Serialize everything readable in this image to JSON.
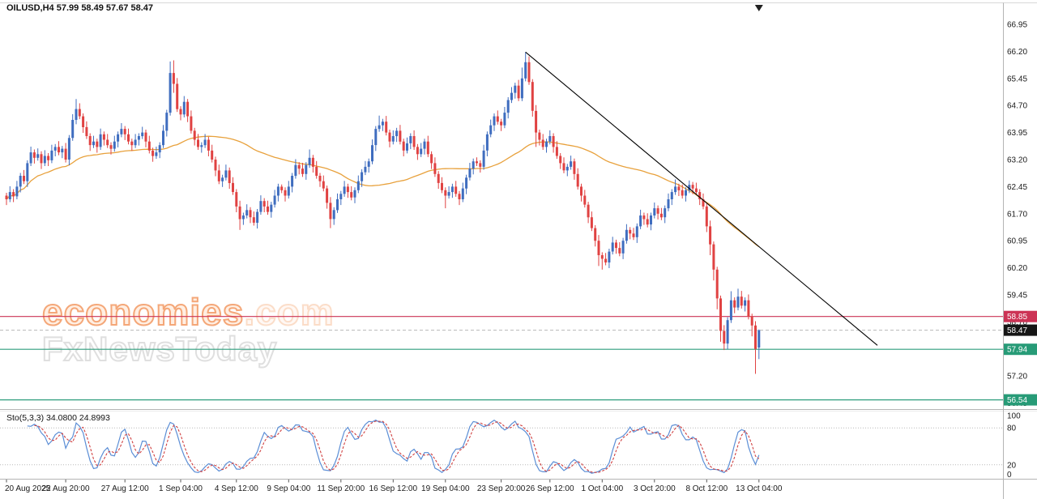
{
  "watermark": {
    "brand_main": "economies",
    "brand_suffix": ".com",
    "subbrand": "FxNewsToday"
  },
  "chart_data": {
    "type": "candlestick",
    "title": "OILUSD,H4 57.99 58.49 57.67 58.47",
    "symbol": "OILUSD",
    "timeframe": "H4",
    "last_bar_ohlc": {
      "open": 57.99,
      "high": 58.49,
      "low": 57.67,
      "close": 58.47
    },
    "price_range": [
      56.28,
      67.5
    ],
    "up_color": "#3f6dbf",
    "down_color": "#e04242",
    "ohlc": [
      [
        62.2,
        62.28,
        61.94,
        62.1
      ],
      [
        62.1,
        62.46,
        62.02,
        62.3
      ],
      [
        62.3,
        62.38,
        62.02,
        62.18
      ],
      [
        62.18,
        62.61,
        62.1,
        62.45
      ],
      [
        62.45,
        62.83,
        62.29,
        62.75
      ],
      [
        62.75,
        62.91,
        62.52,
        62.6
      ],
      [
        62.6,
        63.18,
        62.44,
        63.1
      ],
      [
        63.1,
        63.56,
        63.02,
        63.4
      ],
      [
        63.4,
        63.48,
        63.09,
        63.25
      ],
      [
        63.25,
        63.51,
        63.17,
        63.35
      ],
      [
        63.35,
        63.43,
        62.94,
        63.1
      ],
      [
        63.1,
        63.46,
        63.02,
        63.3
      ],
      [
        63.3,
        63.38,
        63.02,
        63.18
      ],
      [
        63.18,
        63.61,
        63.1,
        63.45
      ],
      [
        63.45,
        63.63,
        63.29,
        63.55
      ],
      [
        63.55,
        63.71,
        63.32,
        63.4
      ],
      [
        63.4,
        63.58,
        63.24,
        63.5
      ],
      [
        63.5,
        63.66,
        63.12,
        63.2
      ],
      [
        63.2,
        63.88,
        63.04,
        63.8
      ],
      [
        63.8,
        64.46,
        63.72,
        64.3
      ],
      [
        64.3,
        64.88,
        64.18,
        64.6
      ],
      [
        64.6,
        64.76,
        64.32,
        64.4
      ],
      [
        64.4,
        64.48,
        63.94,
        64.1
      ],
      [
        64.1,
        64.26,
        63.77,
        63.85
      ],
      [
        63.85,
        63.93,
        63.44,
        63.6
      ],
      [
        63.6,
        63.86,
        63.52,
        63.7
      ],
      [
        63.7,
        63.78,
        63.39,
        63.55
      ],
      [
        63.55,
        64.06,
        63.47,
        63.9
      ],
      [
        63.9,
        63.98,
        63.59,
        63.75
      ],
      [
        63.75,
        63.91,
        63.52,
        63.6
      ],
      [
        63.6,
        63.68,
        63.34,
        63.5
      ],
      [
        63.5,
        63.86,
        63.42,
        63.7
      ],
      [
        63.7,
        63.98,
        63.54,
        63.9
      ],
      [
        63.9,
        64.21,
        63.82,
        64.05
      ],
      [
        64.05,
        64.13,
        63.74,
        63.9
      ],
      [
        63.9,
        64.06,
        63.62,
        63.7
      ],
      [
        63.7,
        63.78,
        63.44,
        63.6
      ],
      [
        63.6,
        63.91,
        63.52,
        63.75
      ],
      [
        63.75,
        63.93,
        63.59,
        63.85
      ],
      [
        63.85,
        64.11,
        63.77,
        63.95
      ],
      [
        63.95,
        64.03,
        63.54,
        63.7
      ],
      [
        63.7,
        63.86,
        63.37,
        63.45
      ],
      [
        63.45,
        63.53,
        63.14,
        63.3
      ],
      [
        63.3,
        63.56,
        63.22,
        63.4
      ],
      [
        63.4,
        63.68,
        63.24,
        63.6
      ],
      [
        63.6,
        64.16,
        63.52,
        64.0
      ],
      [
        64.0,
        64.58,
        63.84,
        64.5
      ],
      [
        64.5,
        65.92,
        64.42,
        65.6
      ],
      [
        65.6,
        65.95,
        65.05,
        65.3
      ],
      [
        65.3,
        65.46,
        64.52,
        64.6
      ],
      [
        64.6,
        64.68,
        64.29,
        64.45
      ],
      [
        64.45,
        64.96,
        64.37,
        64.8
      ],
      [
        64.8,
        64.88,
        64.24,
        64.4
      ],
      [
        64.4,
        64.56,
        63.92,
        64.0
      ],
      [
        64.0,
        64.08,
        63.59,
        63.75
      ],
      [
        63.75,
        63.91,
        63.47,
        63.55
      ],
      [
        63.55,
        63.68,
        63.39,
        63.6
      ],
      [
        63.6,
        63.91,
        63.52,
        63.75
      ],
      [
        63.75,
        63.83,
        63.29,
        63.45
      ],
      [
        63.45,
        63.61,
        63.12,
        63.2
      ],
      [
        63.2,
        63.28,
        62.74,
        62.9
      ],
      [
        62.9,
        63.06,
        62.52,
        62.6
      ],
      [
        62.6,
        62.78,
        62.44,
        62.7
      ],
      [
        62.7,
        63.06,
        62.62,
        62.9
      ],
      [
        62.9,
        62.98,
        62.39,
        62.55
      ],
      [
        62.55,
        62.71,
        62.22,
        62.3
      ],
      [
        62.3,
        62.38,
        61.74,
        61.9
      ],
      [
        61.9,
        62.06,
        61.25,
        61.55
      ],
      [
        61.55,
        61.73,
        61.39,
        61.65
      ],
      [
        61.65,
        61.96,
        61.57,
        61.8
      ],
      [
        61.8,
        61.88,
        61.44,
        61.6
      ],
      [
        61.6,
        61.76,
        61.37,
        61.45
      ],
      [
        61.45,
        61.83,
        61.29,
        61.75
      ],
      [
        61.75,
        62.21,
        61.67,
        62.05
      ],
      [
        62.05,
        62.13,
        61.74,
        61.9
      ],
      [
        61.9,
        62.06,
        61.67,
        61.75
      ],
      [
        61.75,
        62.03,
        61.59,
        61.95
      ],
      [
        61.95,
        62.36,
        61.87,
        62.2
      ],
      [
        62.2,
        62.53,
        62.04,
        62.45
      ],
      [
        62.45,
        62.51,
        62.27,
        62.35
      ],
      [
        62.35,
        62.43,
        62.04,
        62.2
      ],
      [
        62.2,
        62.61,
        62.12,
        62.45
      ],
      [
        62.45,
        62.83,
        62.29,
        62.75
      ],
      [
        62.75,
        63.21,
        62.67,
        63.05
      ],
      [
        63.05,
        63.13,
        62.79,
        62.95
      ],
      [
        62.95,
        63.11,
        62.72,
        62.8
      ],
      [
        62.8,
        63.13,
        62.64,
        63.05
      ],
      [
        63.05,
        63.48,
        62.97,
        63.25
      ],
      [
        63.25,
        63.33,
        62.84,
        63.0
      ],
      [
        63.0,
        63.16,
        62.67,
        62.75
      ],
      [
        62.75,
        62.83,
        62.44,
        62.6
      ],
      [
        62.6,
        62.76,
        62.32,
        62.4
      ],
      [
        62.4,
        62.48,
        61.84,
        62.0
      ],
      [
        62.0,
        62.16,
        61.3,
        61.55
      ],
      [
        61.55,
        61.88,
        61.39,
        61.8
      ],
      [
        61.8,
        62.26,
        61.72,
        62.1
      ],
      [
        62.1,
        62.33,
        61.94,
        62.25
      ],
      [
        62.25,
        62.61,
        62.17,
        62.45
      ],
      [
        62.45,
        62.53,
        62.14,
        62.3
      ],
      [
        62.3,
        62.46,
        62.07,
        62.15
      ],
      [
        62.15,
        62.43,
        61.99,
        62.35
      ],
      [
        62.35,
        62.76,
        62.27,
        62.6
      ],
      [
        62.6,
        62.93,
        62.44,
        62.85
      ],
      [
        62.85,
        63.16,
        62.77,
        63.0
      ],
      [
        63.0,
        63.23,
        62.84,
        63.15
      ],
      [
        63.15,
        63.76,
        63.07,
        63.6
      ],
      [
        63.6,
        64.13,
        63.44,
        64.05
      ],
      [
        64.05,
        64.42,
        63.97,
        64.15
      ],
      [
        64.15,
        64.33,
        63.99,
        64.25
      ],
      [
        64.25,
        64.41,
        63.87,
        63.95
      ],
      [
        63.95,
        64.03,
        63.54,
        63.7
      ],
      [
        63.7,
        64.01,
        63.62,
        63.85
      ],
      [
        63.85,
        64.08,
        63.69,
        64.0
      ],
      [
        64.0,
        64.16,
        63.62,
        63.7
      ],
      [
        63.7,
        63.78,
        63.29,
        63.45
      ],
      [
        63.45,
        63.81,
        63.37,
        63.65
      ],
      [
        63.65,
        63.93,
        63.49,
        63.85
      ],
      [
        63.85,
        64.01,
        63.47,
        63.55
      ],
      [
        63.55,
        63.63,
        63.19,
        63.35
      ],
      [
        63.35,
        63.66,
        63.27,
        63.5
      ],
      [
        63.5,
        63.78,
        63.34,
        63.7
      ],
      [
        63.7,
        63.86,
        63.27,
        63.35
      ],
      [
        63.35,
        63.43,
        62.94,
        63.1
      ],
      [
        63.1,
        63.26,
        62.72,
        62.8
      ],
      [
        62.8,
        62.88,
        62.39,
        62.55
      ],
      [
        62.55,
        62.71,
        62.27,
        62.35
      ],
      [
        62.35,
        62.43,
        61.85,
        62.2
      ],
      [
        62.2,
        62.46,
        62.12,
        62.3
      ],
      [
        62.3,
        62.53,
        62.14,
        62.45
      ],
      [
        62.45,
        62.61,
        62.17,
        62.25
      ],
      [
        62.25,
        62.33,
        61.94,
        62.1
      ],
      [
        62.1,
        62.56,
        62.02,
        62.4
      ],
      [
        62.4,
        62.78,
        62.24,
        62.7
      ],
      [
        62.7,
        63.11,
        62.62,
        62.95
      ],
      [
        62.95,
        63.23,
        62.79,
        63.15
      ],
      [
        63.15,
        63.26,
        63.02,
        63.1
      ],
      [
        63.1,
        63.18,
        62.84,
        63.0
      ],
      [
        63.0,
        63.61,
        62.92,
        63.45
      ],
      [
        63.45,
        63.98,
        63.29,
        63.9
      ],
      [
        63.9,
        64.31,
        63.82,
        64.15
      ],
      [
        64.15,
        64.48,
        63.99,
        64.4
      ],
      [
        64.4,
        64.56,
        64.17,
        64.25
      ],
      [
        64.25,
        64.33,
        63.99,
        64.15
      ],
      [
        64.15,
        64.66,
        64.07,
        64.5
      ],
      [
        64.5,
        64.93,
        64.34,
        64.85
      ],
      [
        64.85,
        65.21,
        64.77,
        65.05
      ],
      [
        65.05,
        65.33,
        64.89,
        65.25
      ],
      [
        65.25,
        65.41,
        64.82,
        64.9
      ],
      [
        64.9,
        65.75,
        64.82,
        65.45
      ],
      [
        65.45,
        66.18,
        65.37,
        65.9
      ],
      [
        65.9,
        66.06,
        65.27,
        65.35
      ],
      [
        65.35,
        65.43,
        64.39,
        64.55
      ],
      [
        64.55,
        64.71,
        63.55,
        63.95
      ],
      [
        63.95,
        64.03,
        63.59,
        63.75
      ],
      [
        63.75,
        63.91,
        63.47,
        63.55
      ],
      [
        63.55,
        63.78,
        63.39,
        63.7
      ],
      [
        63.7,
        64.01,
        63.62,
        63.85
      ],
      [
        63.85,
        63.93,
        63.39,
        63.55
      ],
      [
        63.55,
        63.71,
        63.22,
        63.3
      ],
      [
        63.3,
        63.38,
        62.94,
        63.1
      ],
      [
        63.1,
        63.26,
        62.82,
        62.9
      ],
      [
        62.9,
        63.08,
        62.74,
        63.0
      ],
      [
        63.0,
        63.31,
        62.92,
        63.15
      ],
      [
        63.15,
        63.23,
        62.64,
        62.8
      ],
      [
        62.8,
        62.96,
        62.37,
        62.45
      ],
      [
        62.45,
        62.53,
        62.04,
        62.2
      ],
      [
        62.2,
        62.36,
        61.87,
        61.95
      ],
      [
        61.95,
        62.03,
        61.44,
        61.6
      ],
      [
        61.6,
        61.76,
        61.22,
        61.3
      ],
      [
        61.3,
        61.38,
        60.79,
        60.95
      ],
      [
        60.95,
        61.11,
        60.25,
        60.55
      ],
      [
        60.55,
        60.63,
        60.15,
        60.45
      ],
      [
        60.45,
        60.61,
        60.27,
        60.35
      ],
      [
        60.35,
        60.73,
        60.19,
        60.65
      ],
      [
        60.65,
        61.06,
        60.57,
        60.9
      ],
      [
        60.9,
        60.98,
        60.59,
        60.75
      ],
      [
        60.75,
        60.91,
        60.52,
        60.6
      ],
      [
        60.6,
        61.03,
        60.44,
        60.95
      ],
      [
        60.95,
        61.41,
        60.87,
        61.25
      ],
      [
        61.25,
        61.33,
        60.99,
        61.15
      ],
      [
        61.15,
        61.31,
        60.97,
        61.05
      ],
      [
        61.05,
        61.43,
        60.89,
        61.35
      ],
      [
        61.35,
        61.81,
        61.27,
        61.65
      ],
      [
        61.65,
        61.73,
        61.39,
        61.55
      ],
      [
        61.55,
        61.71,
        61.32,
        61.4
      ],
      [
        61.4,
        61.73,
        61.24,
        61.65
      ],
      [
        61.65,
        62.01,
        61.57,
        61.85
      ],
      [
        61.85,
        61.93,
        61.54,
        61.7
      ],
      [
        61.7,
        61.86,
        61.52,
        61.6
      ],
      [
        61.6,
        61.93,
        61.44,
        61.85
      ],
      [
        61.85,
        62.26,
        61.77,
        62.1
      ],
      [
        62.1,
        62.38,
        61.94,
        62.3
      ],
      [
        62.3,
        62.65,
        62.22,
        62.45
      ],
      [
        62.45,
        62.53,
        62.19,
        62.35
      ],
      [
        62.35,
        62.51,
        62.12,
        62.2
      ],
      [
        62.2,
        62.43,
        62.04,
        62.35
      ],
      [
        62.35,
        62.62,
        62.27,
        62.5
      ],
      [
        62.5,
        62.58,
        62.24,
        62.4
      ],
      [
        62.4,
        62.56,
        62.22,
        62.3
      ],
      [
        62.3,
        62.38,
        61.94,
        62.1
      ],
      [
        62.1,
        62.26,
        61.82,
        61.9
      ],
      [
        61.9,
        61.98,
        61.19,
        61.35
      ],
      [
        61.35,
        61.51,
        60.55,
        60.85
      ],
      [
        60.85,
        60.93,
        59.85,
        60.15
      ],
      [
        60.15,
        60.23,
        59.05,
        59.35
      ],
      [
        59.35,
        59.43,
        58.15,
        58.45
      ],
      [
        58.45,
        58.61,
        57.92,
        58.1
      ],
      [
        58.1,
        58.83,
        57.94,
        58.75
      ],
      [
        58.75,
        59.55,
        58.67,
        59.3
      ],
      [
        59.3,
        59.38,
        58.94,
        59.1
      ],
      [
        59.1,
        59.62,
        59.02,
        59.4
      ],
      [
        59.4,
        59.56,
        59.07,
        59.15
      ],
      [
        59.15,
        59.38,
        58.99,
        59.3
      ],
      [
        59.3,
        59.46,
        58.77,
        58.85
      ],
      [
        58.85,
        58.93,
        58.3,
        58.6
      ],
      [
        58.6,
        58.72,
        57.26,
        57.95
      ],
      [
        57.99,
        58.49,
        57.67,
        58.47
      ]
    ],
    "overlays": {
      "ma": {
        "type": "sma",
        "period": 50,
        "color": "#e8a13c"
      },
      "trendline": {
        "from_bar": 149,
        "from_price": 66.18,
        "to_bar": 250,
        "to_price": 58.05,
        "color": "#000000"
      },
      "hlines": [
        {
          "price": 58.85,
          "color": "#cc3355"
        },
        {
          "price": 57.94,
          "color": "#2f9e7d"
        },
        {
          "price": 56.54,
          "color": "#2f9e7d"
        }
      ],
      "current_price": {
        "value": 58.47,
        "color": "#b8b8b8"
      }
    },
    "stochastic": {
      "label": "Sto(5,3,3) 34.0800 24.8993",
      "k_period": 5,
      "d_period": 3,
      "slowing": 3,
      "current_k": 34.08,
      "current_d": 24.8993,
      "levels": [
        80,
        20
      ],
      "k_color": "#5b8ed6",
      "d_color": "#d04040"
    },
    "price_axis": {
      "ticks": [
        "66.95",
        "66.20",
        "65.45",
        "64.70",
        "63.95",
        "63.20",
        "62.45",
        "61.70",
        "60.95",
        "60.20",
        "59.45",
        "58.70",
        "57.95",
        "57.20",
        "56.45"
      ],
      "badges": [
        {
          "text": "58.85",
          "color": "#cc3355"
        },
        {
          "text": "58.47",
          "color": "#161616"
        },
        {
          "text": "57.94",
          "color": "#279b77"
        },
        {
          "text": "56.54",
          "color": "#279b77"
        }
      ]
    },
    "time_axis": [
      {
        "text": "20 Aug 2025",
        "bar": 0
      },
      {
        "text": "22 Aug 20:00",
        "bar": 17
      },
      {
        "text": "27 Aug 12:00",
        "bar": 34
      },
      {
        "text": "1 Sep 04:00",
        "bar": 50
      },
      {
        "text": "4 Sep 12:00",
        "bar": 66
      },
      {
        "text": "9 Sep 04:00",
        "bar": 81
      },
      {
        "text": "11 Sep 20:00",
        "bar": 96
      },
      {
        "text": "16 Sep 12:00",
        "bar": 111
      },
      {
        "text": "19 Sep 04:00",
        "bar": 126
      },
      {
        "text": "23 Sep 20:00",
        "bar": 142
      },
      {
        "text": "26 Sep 12:00",
        "bar": 156
      },
      {
        "text": "1 Oct 04:00",
        "bar": 171
      },
      {
        "text": "3 Oct 20:00",
        "bar": 186
      },
      {
        "text": "8 Oct 12:00",
        "bar": 201
      },
      {
        "text": "13 Oct 04:00",
        "bar": 216
      }
    ],
    "sto_axis": [
      {
        "text": "100",
        "value": 100
      },
      {
        "text": "80",
        "value": 80
      },
      {
        "text": "20",
        "value": 20
      },
      {
        "text": "0",
        "value": 0
      }
    ]
  }
}
